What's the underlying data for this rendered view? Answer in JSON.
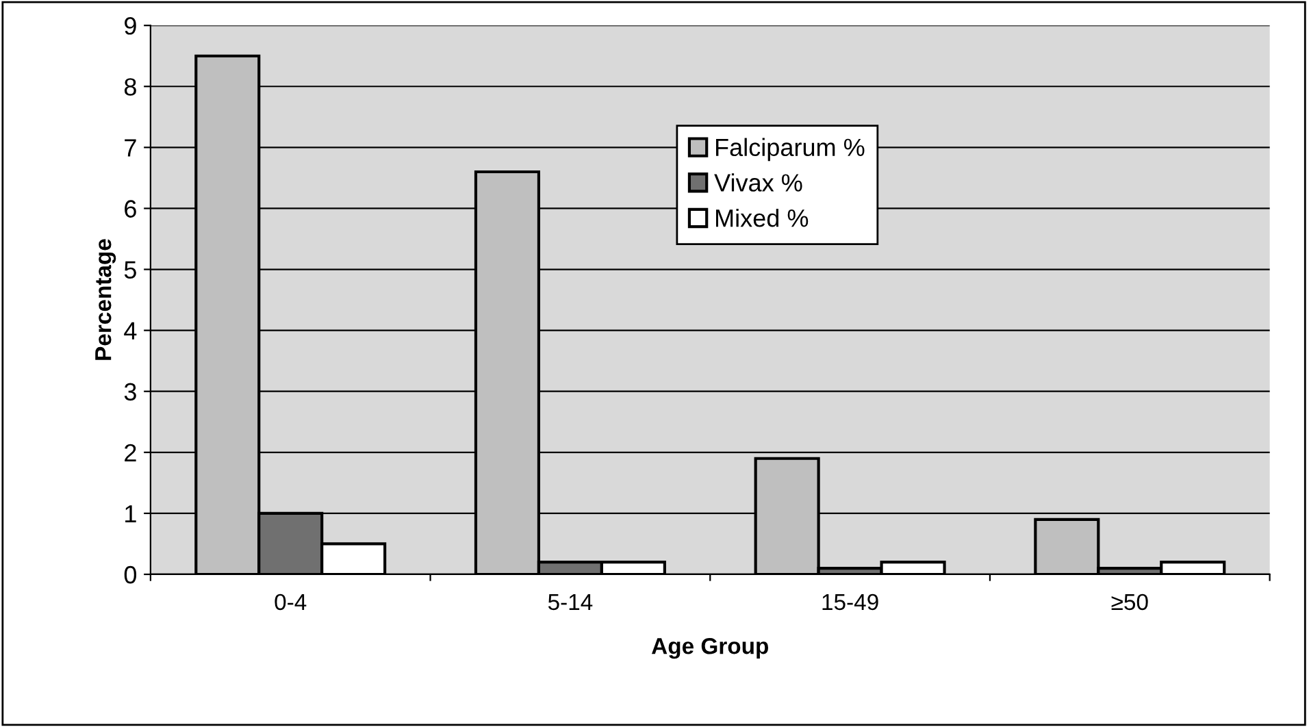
{
  "chart_data": {
    "type": "bar",
    "xlabel": "Age Group",
    "ylabel": "Percentage",
    "categories": [
      "0-4",
      "5-14",
      "15-49",
      "≥50"
    ],
    "series": [
      {
        "name": "Falciparum %",
        "color": "#bfbfbf",
        "values": [
          8.5,
          6.6,
          1.9,
          0.9
        ]
      },
      {
        "name": "Vivax %",
        "color": "#707070",
        "values": [
          1.0,
          0.2,
          0.1,
          0.1
        ]
      },
      {
        "name": "Mixed %",
        "color": "#ffffff",
        "values": [
          0.5,
          0.2,
          0.2,
          0.2
        ]
      }
    ],
    "ylim": [
      0,
      9
    ],
    "yticks": [
      0,
      1,
      2,
      3,
      4,
      5,
      6,
      7,
      8,
      9
    ],
    "grid": "y",
    "legend": "top"
  }
}
